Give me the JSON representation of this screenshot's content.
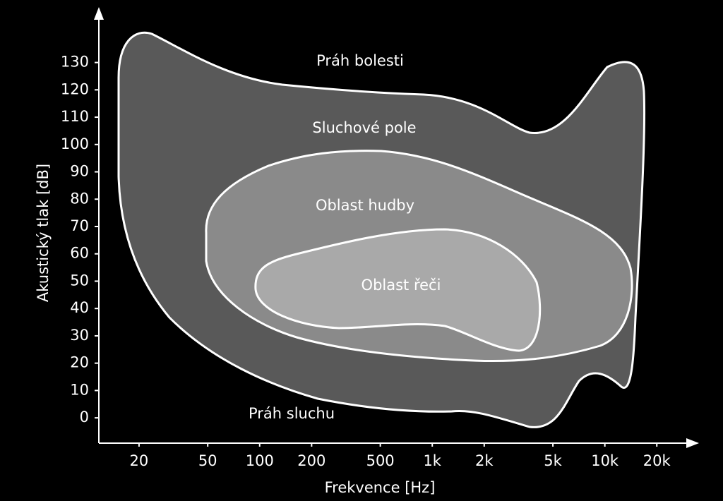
{
  "chart_data": {
    "type": "area",
    "xlabel": "Frekvence [Hz]",
    "ylabel": "Akustický tlak [dB]",
    "xscale": "log",
    "xlim": [
      11.7,
      33500
    ],
    "ylim": [
      -9,
      149
    ],
    "xticks": [
      20,
      50,
      100,
      200,
      500,
      {
        "value": 1000,
        "label": "1k"
      },
      {
        "value": 2000,
        "label": "2k"
      },
      {
        "value": 5000,
        "label": "5k"
      },
      {
        "value": 10000,
        "label": "10k"
      },
      {
        "value": 20000,
        "label": "20k"
      }
    ],
    "yticks": [
      0,
      10,
      20,
      30,
      40,
      50,
      60,
      70,
      80,
      90,
      100,
      110,
      120,
      130
    ],
    "annotations": [
      "Práh bolesti",
      "Sluchové pole",
      "Oblast hudby",
      "Oblast řeči",
      "Práh sluchu"
    ]
  }
}
